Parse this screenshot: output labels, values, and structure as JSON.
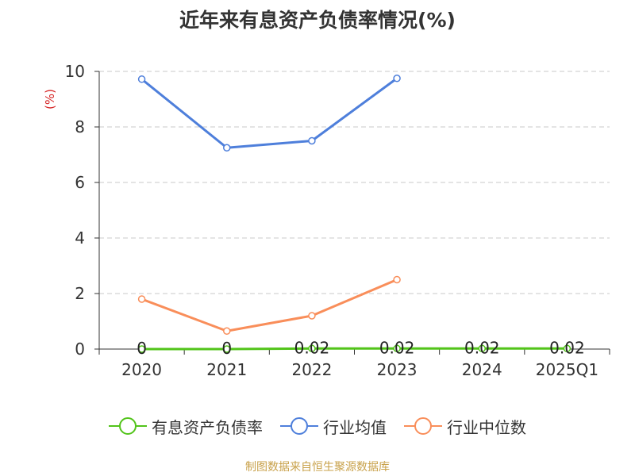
{
  "title": "近年来有息资产负债率情况(%)",
  "source": "制图数据来自恒生聚源数据库",
  "chart_data": {
    "type": "line",
    "title": "近年来有息资产负债率情况(%)",
    "xlabel": "",
    "ylabel": "(%)",
    "categories": [
      "2020",
      "2021",
      "2022",
      "2023",
      "2024",
      "2025Q1"
    ],
    "ylim": [
      0,
      10
    ],
    "yticks": [
      0,
      2,
      4,
      6,
      8,
      10
    ],
    "grid": true,
    "legend_position": "bottom",
    "series": [
      {
        "name": "有息资产负债率",
        "color": "#52c41a",
        "values": [
          0,
          0,
          0.02,
          0.02,
          0.02,
          0.02
        ],
        "labels": [
          "0",
          "0",
          "0.02",
          "0.02",
          "0.02",
          "0.02"
        ]
      },
      {
        "name": "行业均值",
        "color": "#4e7fdb",
        "values": [
          9.72,
          7.25,
          7.5,
          9.75,
          null,
          null
        ]
      },
      {
        "name": "行业中位数",
        "color": "#f98e5a",
        "values": [
          1.8,
          0.65,
          1.2,
          2.5,
          null,
          null
        ]
      }
    ]
  }
}
